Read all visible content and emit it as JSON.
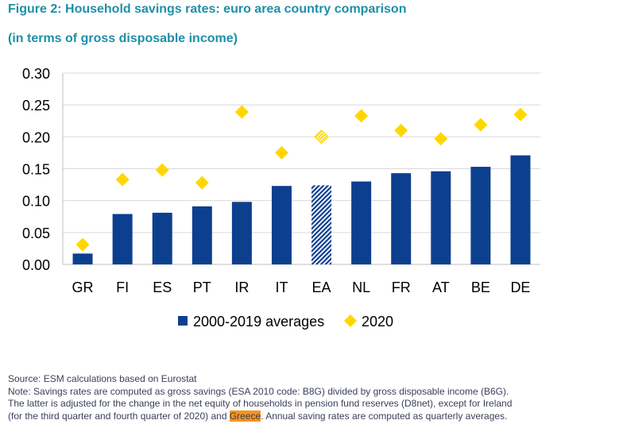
{
  "chart_data": {
    "type": "bar",
    "title": "Figure 2: Household savings rates: euro area country comparison",
    "subtitle": "(in terms of gross disposable income)",
    "xlabel": "",
    "ylabel": "",
    "ylim": [
      0,
      0.3
    ],
    "yticks": [
      "0.00",
      "0.05",
      "0.10",
      "0.15",
      "0.20",
      "0.25",
      "0.30"
    ],
    "grid": true,
    "legend_position": "bottom-center",
    "categories": [
      "GR",
      "FI",
      "ES",
      "PT",
      "IR",
      "IT",
      "EA",
      "NL",
      "FR",
      "AT",
      "BE",
      "DE"
    ],
    "series": [
      {
        "name": "2000-2019 averages",
        "type": "bar",
        "color": "#0d3f8f",
        "values": [
          0.017,
          0.079,
          0.081,
          0.091,
          0.098,
          0.123,
          0.124,
          0.13,
          0.143,
          0.146,
          0.153,
          0.171
        ],
        "hatched_category": "EA"
      },
      {
        "name": "2020",
        "type": "scatter",
        "marker": "diamond",
        "color": "#ffd700",
        "values": [
          0.031,
          0.133,
          0.148,
          0.128,
          0.239,
          0.175,
          0.2,
          0.233,
          0.21,
          0.197,
          0.219,
          0.235
        ],
        "hatched_category": "EA"
      }
    ]
  },
  "notes": {
    "source": "Source: ESM calculations based on Eurostat",
    "line1": "Note: Savings rates are computed as gross savings (ESA 2010 code: B8G) divided by gross disposable income (B6G).",
    "line2": "The latter is adjusted for the change in the net equity of households in pension fund reserves (D8net), except for Ireland",
    "line3_before": "(for the third quarter and fourth quarter of 2020) and ",
    "line3_highlight": "Greece",
    "line3_after": ". Annual saving rates are computed as quarterly averages."
  },
  "colors": {
    "title": "#1f8fa8",
    "bar": "#0d3f8f",
    "diamond": "#ffd700",
    "highlight": "#f7941d"
  }
}
